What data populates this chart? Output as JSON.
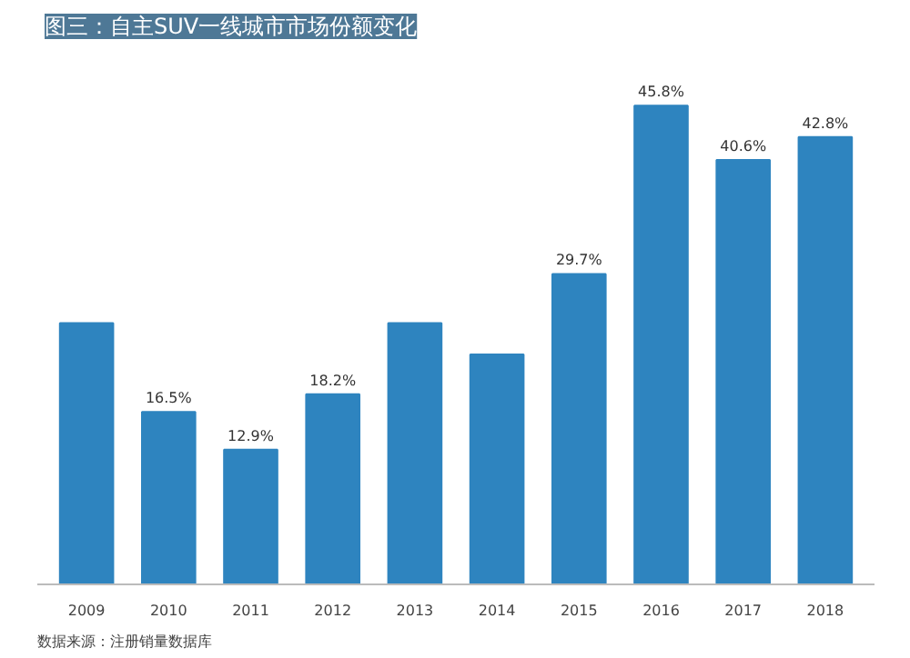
{
  "chart_data": {
    "type": "bar",
    "title": "图三：自主SUV一线城市市场份额变化",
    "categories": [
      "2009",
      "2010",
      "2011",
      "2012",
      "2013",
      "2014",
      "2015",
      "2016",
      "2017",
      "2018"
    ],
    "values": [
      25,
      16.5,
      12.9,
      18.2,
      25,
      22,
      29.7,
      45.8,
      40.6,
      42.8
    ],
    "value_labels": [
      null,
      "16.5%",
      "12.9%",
      "18.2%",
      null,
      null,
      "29.7%",
      "45.8%",
      "40.6%",
      "42.8%"
    ],
    "color": "#2e84bf",
    "annotations": [
      "数据来源：注册销量数据库"
    ]
  }
}
